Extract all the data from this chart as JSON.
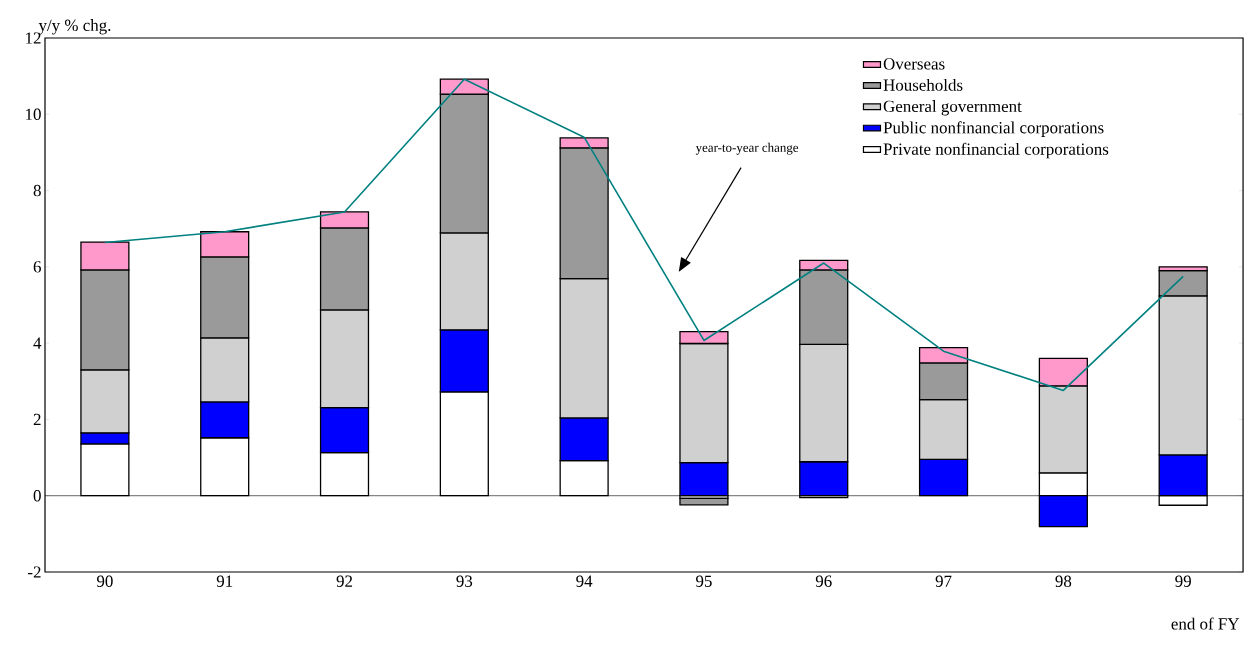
{
  "chart_data": {
    "type": "bar",
    "stacked": true,
    "ylabel": "y/y % chg.",
    "xlabel": "end of FY",
    "categories": [
      "90",
      "91",
      "92",
      "93",
      "94",
      "95",
      "96",
      "97",
      "98",
      "99"
    ],
    "series": [
      {
        "name": "Private nonfinancial corporations",
        "color": "#ffffff",
        "values": [
          1.36,
          1.52,
          1.13,
          2.72,
          0.92,
          -0.07,
          -0.05,
          0.0,
          0.6,
          -0.25
        ]
      },
      {
        "name": "Public nonfinancial corporations",
        "color": "#0000ff",
        "values": [
          0.29,
          0.94,
          1.18,
          1.63,
          1.12,
          0.87,
          0.89,
          0.95,
          -0.81,
          1.07
        ]
      },
      {
        "name": "General government",
        "color": "#d0d0d0",
        "values": [
          1.65,
          1.68,
          2.56,
          2.54,
          3.65,
          3.12,
          3.08,
          1.57,
          2.28,
          4.17
        ]
      },
      {
        "name": "Households",
        "color": "#9a9a9a",
        "values": [
          2.62,
          2.12,
          2.15,
          3.64,
          3.43,
          -0.17,
          1.95,
          0.96,
          0.0,
          0.66
        ]
      },
      {
        "name": "Overseas",
        "color": "#ff99cc",
        "values": [
          0.73,
          0.66,
          0.42,
          0.39,
          0.26,
          0.31,
          0.25,
          0.4,
          0.72,
          0.1
        ]
      },
      {
        "type": "line",
        "color": "#008080",
        "values": [
          6.64,
          6.92,
          7.44,
          10.92,
          9.4,
          4.07,
          6.1,
          3.79,
          2.76,
          5.75
        ]
      }
    ],
    "ylim": [
      -2,
      12
    ],
    "yticks": [
      -2,
      0,
      2,
      4,
      6,
      8,
      10,
      12
    ],
    "legend": "top right",
    "annotations": [
      "year-to-year change"
    ]
  }
}
